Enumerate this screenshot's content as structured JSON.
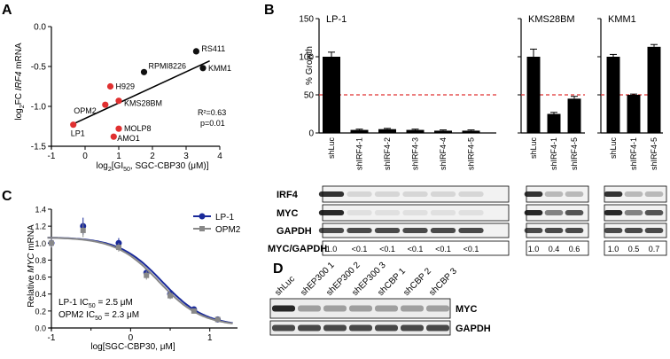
{
  "panels": {
    "A": "A",
    "B": "B",
    "C": "C",
    "D": "D"
  },
  "panelA": {
    "ylabel": {
      "pre": "log",
      "sub": "2",
      "mid": "FC ",
      "ital": "IRF4",
      "post": " mRNA"
    },
    "xlabel": {
      "pre": "log",
      "sub": "2",
      "mid": "[GI",
      "sub2": "50",
      "post": ", SGC-CBP30 (μM)]"
    },
    "r2": "R²=0.63",
    "p": "p=0.01",
    "xticks": [
      "-1",
      "0",
      "1",
      "2",
      "3",
      "4"
    ],
    "yticks": [
      "0.0",
      "-0.5",
      "-1.0",
      "-1.5"
    ]
  },
  "panelB": {
    "ylabel": "% Growth",
    "yticks": [
      "150",
      "100",
      "50",
      "0"
    ],
    "cells": [
      {
        "name": "LP-1",
        "lanes": [
          "shLuc",
          "shIRF4-1",
          "shIRF4-2",
          "shIRF4-3",
          "shIRF4-4",
          "shIRF4-5"
        ],
        "growth": [
          100,
          4,
          5,
          4,
          3,
          3
        ],
        "err": [
          6,
          1,
          1,
          1,
          1,
          1
        ],
        "ratios": [
          "1.0",
          "<0.1",
          "<0.1",
          "<0.1",
          "<0.1",
          "<0.1"
        ]
      },
      {
        "name": "KMS28BM",
        "lanes": [
          "shLuc",
          "shIRF4-1",
          "shIRF4-5"
        ],
        "growth": [
          100,
          25,
          45
        ],
        "err": [
          10,
          2,
          3
        ],
        "ratios": [
          "1.0",
          "0.4",
          "0.6"
        ]
      },
      {
        "name": "KMM1",
        "lanes": [
          "shLuc",
          "shIRF4-1",
          "shIRF4-5"
        ],
        "growth": [
          100,
          50,
          113
        ],
        "err": [
          3,
          1,
          3
        ],
        "ratios": [
          "1.0",
          "0.5",
          "0.7"
        ]
      }
    ],
    "blot_rows": [
      "IRF4",
      "MYC",
      "GAPDH"
    ],
    "ratio_label": "MYC/GAPDH"
  },
  "panelC": {
    "ylabel": {
      "pre": "Relative ",
      "ital": "MYC",
      "post": " mRNA"
    },
    "xlabel": "log[SGC-CBP30, μM]",
    "xticks": [
      "-1",
      "0",
      "1"
    ],
    "yticks": [
      "0.0",
      "0.2",
      "0.4",
      "0.6",
      "0.8",
      "1.0",
      "1.2",
      "1.4"
    ],
    "legend": [
      "LP-1",
      "OPM2"
    ],
    "ic1": {
      "pre": "LP-1 IC",
      "sub": "50",
      "post": " = 2.5 μM"
    },
    "ic2": {
      "pre": "OPM2 IC",
      "sub": "50",
      "post": " = 2.3 μM"
    }
  },
  "panelD": {
    "lanes": [
      "shLuc",
      "shEP300 1",
      "shEP300 2",
      "shEP300 3",
      "shCBP 1",
      "shCBP 2",
      "shCBP 3"
    ],
    "rows": [
      "MYC",
      "GAPDH"
    ]
  },
  "chart_data": [
    {
      "type": "scatter",
      "xlabel": "log2[GI50, SGC-CBP30 (μM)]",
      "ylabel": "log2FC IRF4 mRNA",
      "xlim": [
        -1,
        4
      ],
      "ylim": [
        -1.5,
        0.0
      ],
      "series": [
        {
          "points": [
            {
              "label": "RS411",
              "x": 3.3,
              "y": -0.31,
              "color": "#111111"
            },
            {
              "label": "KMM1",
              "x": 3.5,
              "y": -0.52,
              "color": "#111111"
            },
            {
              "label": "RPMI8226",
              "x": 1.75,
              "y": -0.57,
              "color": "#111111"
            },
            {
              "label": "H929",
              "x": 0.75,
              "y": -0.75,
              "color": "#e03030"
            },
            {
              "label": "OPM2",
              "x": 0.6,
              "y": -0.98,
              "color": "#e03030"
            },
            {
              "label": "KMS28BM",
              "x": 1.0,
              "y": -0.93,
              "color": "#e03030"
            },
            {
              "label": "MOLP8",
              "x": 1.0,
              "y": -1.28,
              "color": "#e03030"
            },
            {
              "label": "LP1",
              "x": -0.35,
              "y": -1.23,
              "color": "#e03030"
            },
            {
              "label": "AMO1",
              "x": 0.85,
              "y": -1.38,
              "color": "#e03030"
            }
          ]
        }
      ],
      "fit": {
        "x": [
          -0.35,
          3.7
        ],
        "y": [
          -1.22,
          -0.43
        ]
      },
      "annotations": [
        "R²=0.63",
        "p=0.01"
      ]
    },
    {
      "type": "bar",
      "ylabel": "% Growth",
      "ylim": [
        0,
        150
      ],
      "threshold": 50,
      "colors": {
        "bar": "#000000",
        "threshold": "#e03030"
      },
      "series": [
        {
          "name": "LP-1",
          "categories": [
            "shLuc",
            "shIRF4-1",
            "shIRF4-2",
            "shIRF4-3",
            "shIRF4-4",
            "shIRF4-5"
          ],
          "values": [
            100,
            4,
            5,
            4,
            3,
            3
          ]
        },
        {
          "name": "KMS28BM",
          "categories": [
            "shLuc",
            "shIRF4-1",
            "shIRF4-5"
          ],
          "values": [
            100,
            25,
            45
          ]
        },
        {
          "name": "KMM1",
          "categories": [
            "shLuc",
            "shIRF4-1",
            "shIRF4-5"
          ],
          "values": [
            100,
            50,
            113
          ]
        }
      ]
    },
    {
      "type": "line",
      "xlabel": "log[SGC-CBP30, μM]",
      "ylabel": "Relative MYC mRNA",
      "xlim": [
        -1,
        1.35
      ],
      "ylim": [
        0,
        1.4
      ],
      "series": [
        {
          "name": "LP-1",
          "color": "#1a2a9a",
          "x": [
            -1,
            -0.6,
            -0.15,
            0.2,
            0.5,
            0.8,
            1.1
          ],
          "y": [
            1.0,
            1.2,
            1.0,
            0.65,
            0.4,
            0.22,
            0.1
          ],
          "err": [
            0.05,
            0.1,
            0.06,
            0.05,
            0.04,
            0.03,
            0.02
          ],
          "fit_logIC50": 0.4
        },
        {
          "name": "OPM2",
          "color": "#888888",
          "x": [
            -1,
            -0.6,
            -0.15,
            0.2,
            0.5,
            0.8,
            1.1
          ],
          "y": [
            1.0,
            1.15,
            0.95,
            0.62,
            0.38,
            0.2,
            0.1
          ],
          "err": [
            0.05,
            0.08,
            0.05,
            0.05,
            0.04,
            0.03,
            0.02
          ],
          "fit_logIC50": 0.36
        }
      ]
    }
  ]
}
